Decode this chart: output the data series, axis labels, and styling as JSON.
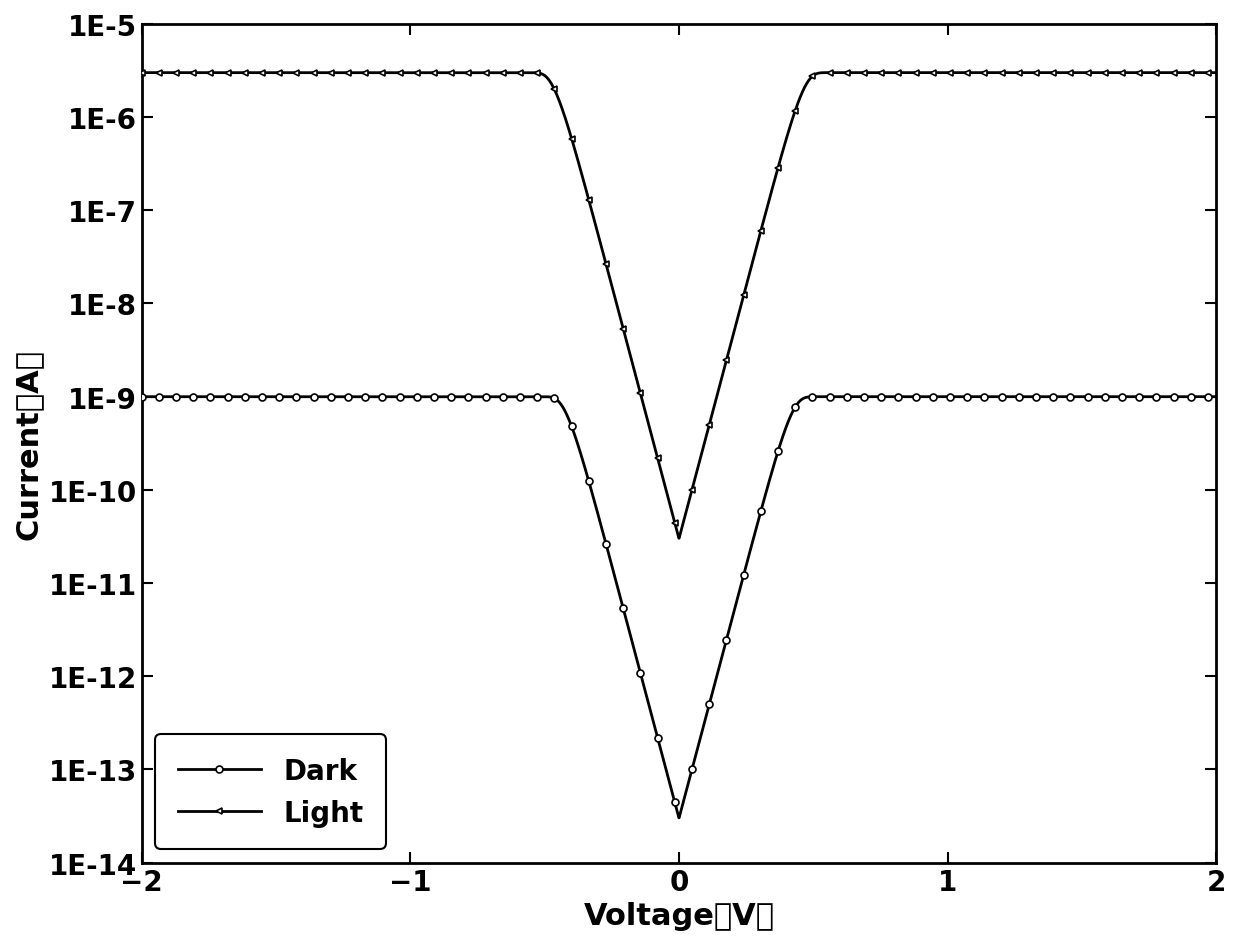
{
  "xlabel": "Voltage（V）",
  "ylabel": "Current（A）",
  "xlim": [
    -2,
    2
  ],
  "ylim_log": [
    -14,
    -5
  ],
  "background_color": "#ffffff",
  "line_color": "#000000",
  "dark_label": "Dark",
  "light_label": "Light",
  "marker_size": 5,
  "linewidth": 2.0,
  "fontsize_label": 22,
  "fontsize_tick": 20,
  "fontsize_legend": 20,
  "dark_I_sat": 1e-09,
  "dark_I0": 3e-14,
  "dark_n": 25.0,
  "light_I_sat": 3e-06,
  "light_I0": 3e-11,
  "light_n": 25.0
}
